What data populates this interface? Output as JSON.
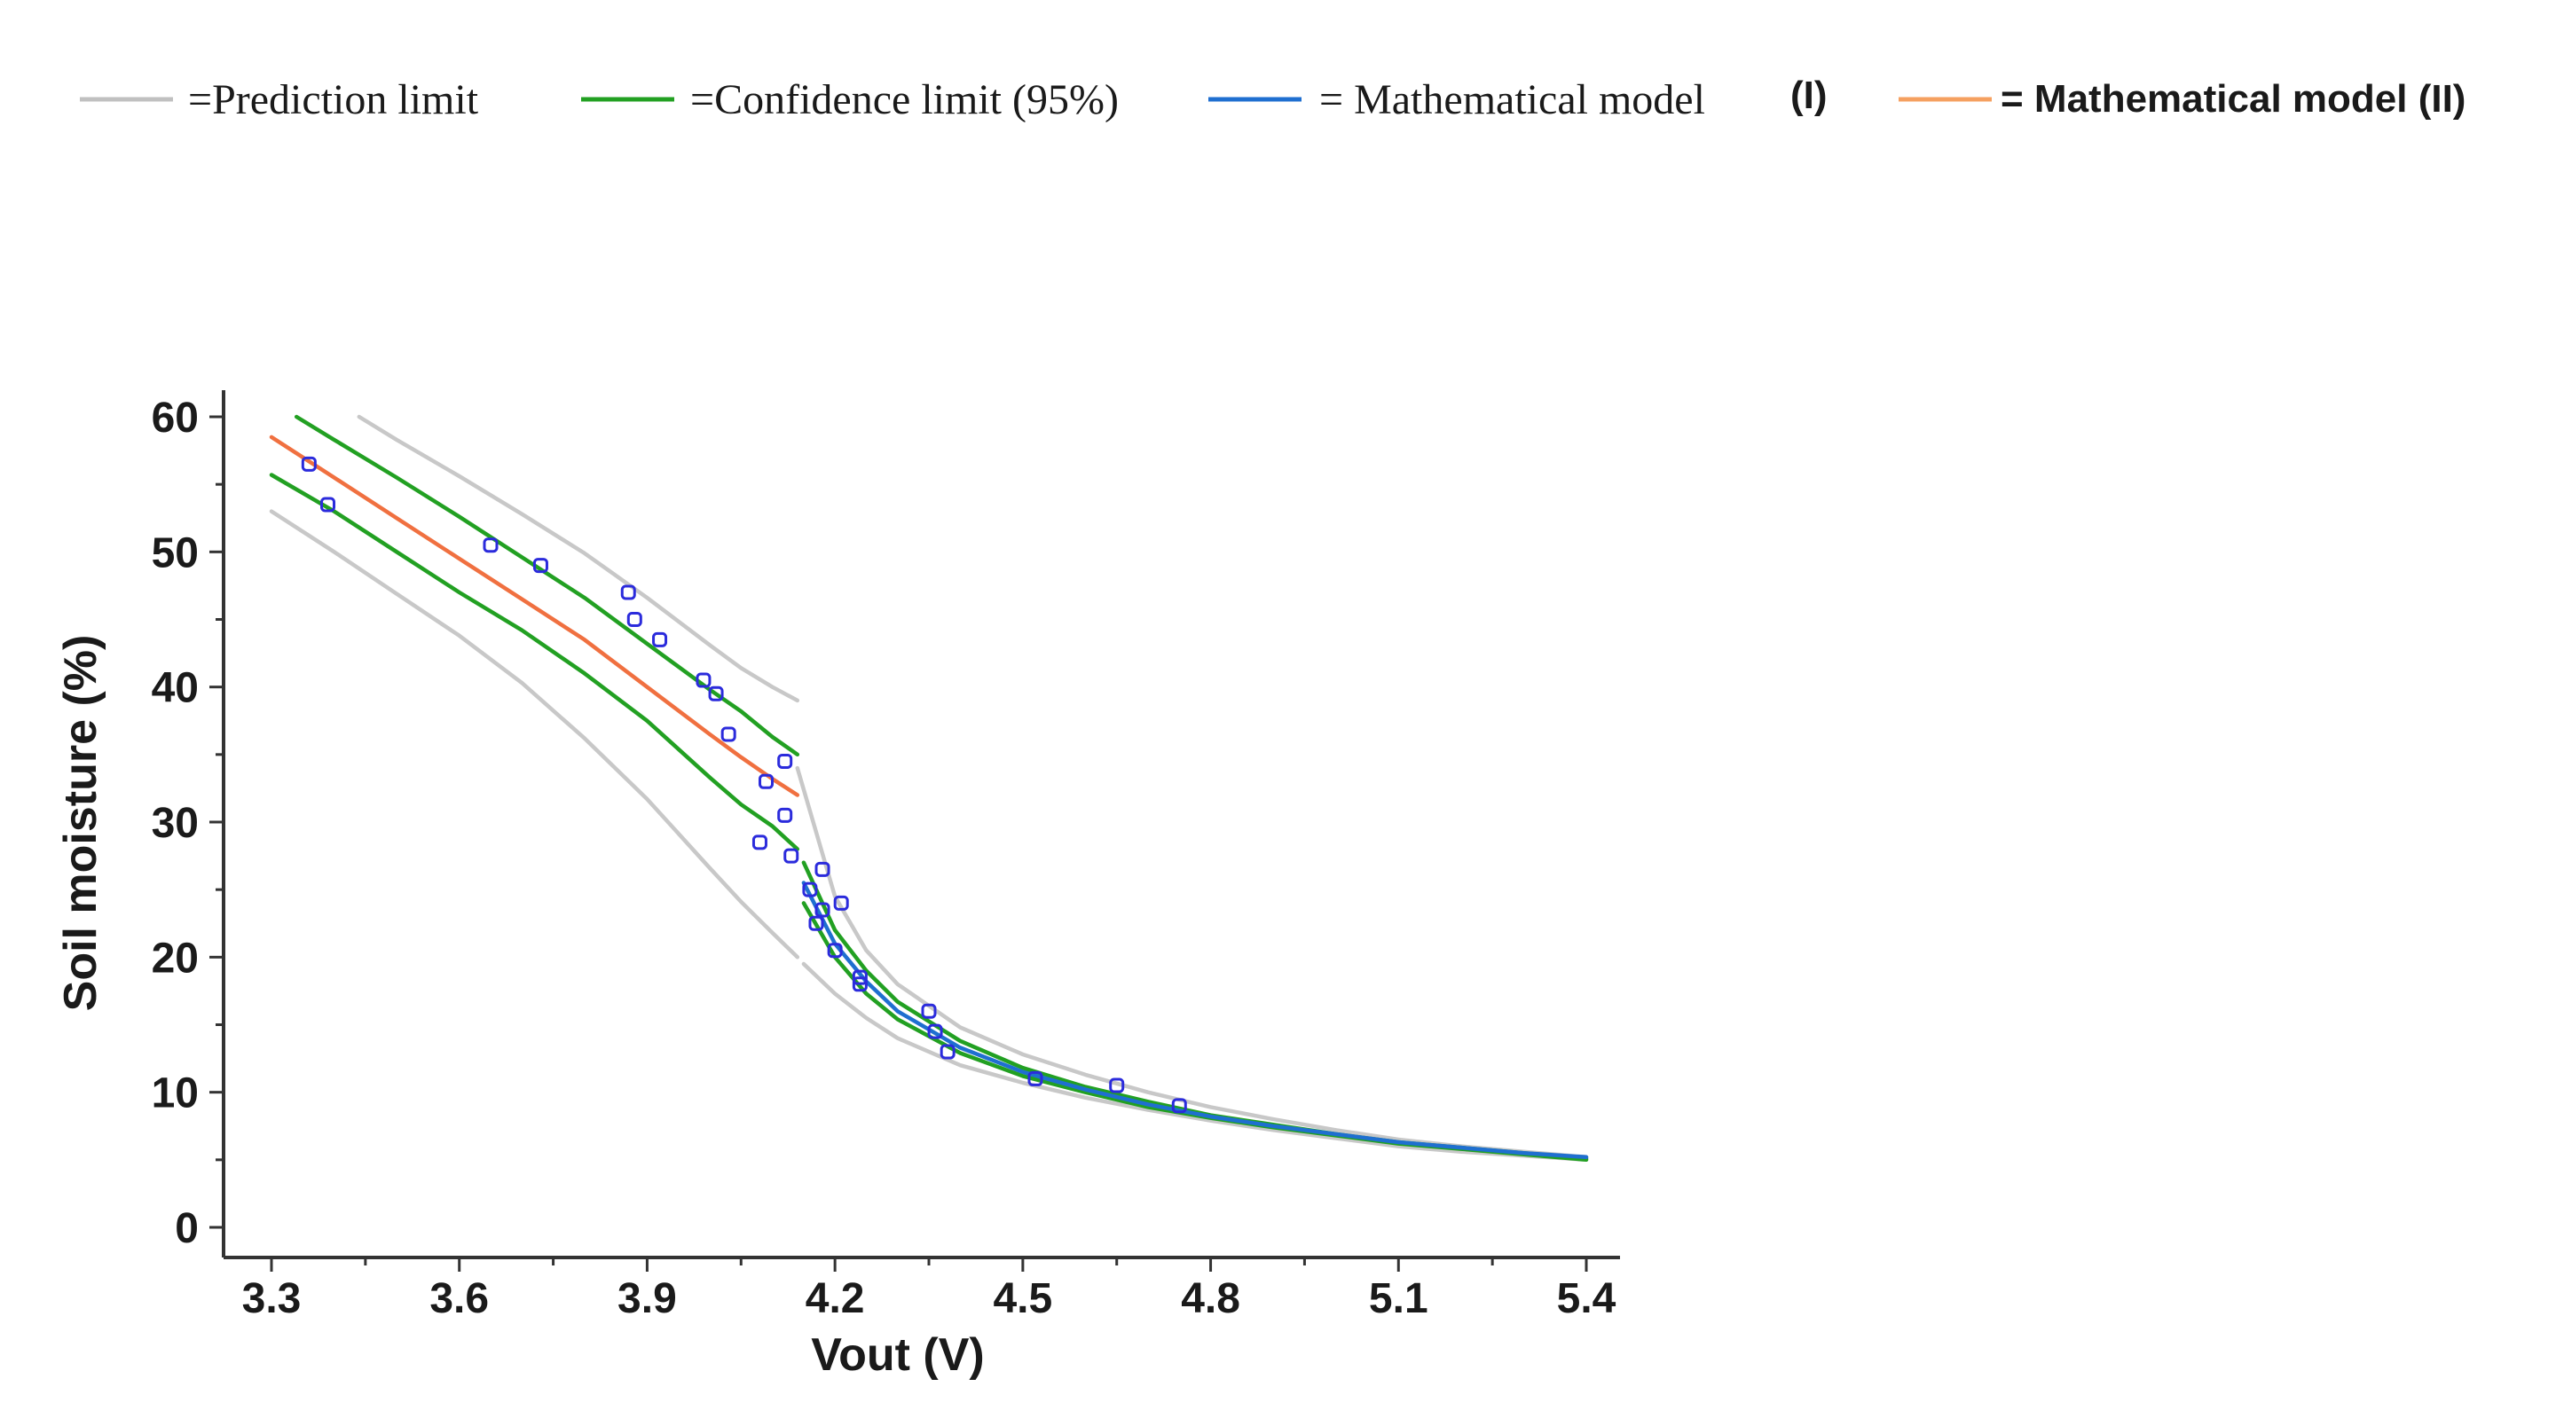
{
  "chart_data": {
    "type": "scatter",
    "title": "",
    "xlabel": "Vout (V)",
    "ylabel": "Soil moisture (%)",
    "xlim": [
      3.25,
      5.45
    ],
    "ylim": [
      -2,
      62
    ],
    "xticks": [
      3.3,
      3.6,
      3.9,
      4.2,
      4.5,
      4.8,
      5.1,
      5.4
    ],
    "xtick_labels": [
      "3.3",
      "3.6",
      "3.9",
      "4.2",
      "4.5",
      "4.8",
      "5.1",
      "5.4"
    ],
    "yticks": [
      0,
      10,
      20,
      30,
      40,
      50,
      60
    ],
    "ytick_labels": [
      "0",
      "10",
      "20",
      "30",
      "40",
      "50",
      "60"
    ],
    "legend": [
      {
        "key": "prediction",
        "label": "=Prediction limit",
        "color": "#c0c0c0"
      },
      {
        "key": "confidence",
        "label": "=Confidence limit (95%)",
        "color": "#22a022"
      },
      {
        "key": "model1",
        "label": "= Mathematical model",
        "suffix": "(I)",
        "color": "#1f6fd0"
      },
      {
        "key": "model2",
        "label": "= Mathematical model (II)",
        "color": "#f5a060"
      }
    ],
    "series": [
      {
        "name": "Observed data",
        "kind": "points",
        "color": "#2b2bdc",
        "x": [
          3.36,
          3.39,
          3.65,
          3.73,
          3.87,
          3.88,
          3.92,
          3.99,
          4.01,
          4.03,
          4.08,
          4.09,
          4.12,
          4.12,
          4.13,
          4.16,
          4.17,
          4.18,
          4.18,
          4.2,
          4.21,
          4.24,
          4.24,
          4.35,
          4.36,
          4.38,
          4.52,
          4.65,
          4.75
        ],
        "y": [
          56.5,
          53.5,
          50.5,
          49.0,
          47.0,
          45.0,
          43.5,
          40.5,
          39.5,
          36.5,
          28.5,
          33.0,
          34.5,
          30.5,
          27.5,
          25.0,
          22.5,
          26.5,
          23.5,
          20.5,
          24.0,
          18.5,
          18.0,
          16.0,
          14.5,
          13.0,
          11.0,
          10.5,
          9.0
        ]
      },
      {
        "name": "Mathematical model (II)",
        "kind": "line",
        "color": "#f07040",
        "x": [
          3.3,
          3.4,
          3.5,
          3.6,
          3.7,
          3.8,
          3.9,
          4.0,
          4.05,
          4.1,
          4.14
        ],
        "y": [
          58.5,
          55.5,
          52.5,
          49.5,
          46.5,
          43.5,
          40.0,
          36.5,
          34.8,
          33.2,
          32.0
        ]
      },
      {
        "name": "Mathematical model (I)",
        "kind": "line",
        "color": "#1f6fd0",
        "x": [
          4.15,
          4.2,
          4.25,
          4.3,
          4.4,
          4.5,
          4.6,
          4.7,
          4.8,
          4.9,
          5.0,
          5.1,
          5.2,
          5.3,
          5.4
        ],
        "y": [
          25.5,
          21.0,
          18.2,
          16.0,
          13.3,
          11.5,
          10.2,
          9.1,
          8.2,
          7.5,
          6.9,
          6.3,
          5.9,
          5.5,
          5.2
        ]
      },
      {
        "name": "Confidence upper (II)",
        "kind": "line",
        "color": "#22a022",
        "x": [
          3.34,
          3.4,
          3.5,
          3.6,
          3.7,
          3.8,
          3.9,
          4.0,
          4.05,
          4.1,
          4.14
        ],
        "y": [
          60.0,
          58.3,
          55.5,
          52.6,
          49.6,
          46.6,
          43.2,
          39.8,
          38.2,
          36.3,
          35.0
        ]
      },
      {
        "name": "Confidence lower (II)",
        "kind": "line",
        "color": "#22a022",
        "x": [
          3.3,
          3.4,
          3.5,
          3.6,
          3.7,
          3.8,
          3.9,
          4.0,
          4.05,
          4.1,
          4.14
        ],
        "y": [
          55.7,
          53.0,
          50.0,
          47.0,
          44.2,
          41.0,
          37.5,
          33.3,
          31.3,
          29.7,
          28.0
        ]
      },
      {
        "name": "Confidence upper (I)",
        "kind": "line",
        "color": "#22a022",
        "x": [
          4.15,
          4.2,
          4.25,
          4.3,
          4.4,
          4.5,
          4.6,
          4.7,
          4.8,
          4.9,
          5.0,
          5.1,
          5.2,
          5.3,
          5.4
        ],
        "y": [
          27.0,
          22.0,
          19.0,
          16.7,
          13.8,
          11.8,
          10.4,
          9.3,
          8.3,
          7.6,
          6.9,
          6.3,
          5.9,
          5.5,
          5.1
        ]
      },
      {
        "name": "Confidence lower (I)",
        "kind": "line",
        "color": "#22a022",
        "x": [
          4.15,
          4.2,
          4.25,
          4.3,
          4.4,
          4.5,
          4.6,
          4.7,
          4.8,
          4.9,
          5.0,
          5.1,
          5.2,
          5.3,
          5.4
        ],
        "y": [
          24.0,
          20.0,
          17.3,
          15.4,
          12.9,
          11.2,
          10.0,
          8.9,
          8.1,
          7.4,
          6.8,
          6.2,
          5.8,
          5.4,
          5.0
        ]
      },
      {
        "name": "Prediction upper (II)",
        "kind": "line",
        "color": "#c8c8c8",
        "x": [
          3.44,
          3.5,
          3.6,
          3.7,
          3.8,
          3.9,
          4.0,
          4.05,
          4.1,
          4.14
        ],
        "y": [
          60.0,
          58.3,
          55.6,
          52.8,
          49.9,
          46.6,
          43.1,
          41.4,
          40.0,
          39.0
        ]
      },
      {
        "name": "Prediction lower (II)",
        "kind": "line",
        "color": "#c8c8c8",
        "x": [
          3.3,
          3.4,
          3.5,
          3.6,
          3.7,
          3.8,
          3.9,
          4.0,
          4.05,
          4.1,
          4.14
        ],
        "y": [
          53.0,
          50.0,
          46.9,
          43.8,
          40.3,
          36.2,
          31.7,
          26.6,
          24.1,
          21.8,
          20.0
        ]
      },
      {
        "name": "Prediction upper (I)",
        "kind": "line",
        "color": "#c8c8c8",
        "x": [
          4.14,
          4.2,
          4.25,
          4.3,
          4.4,
          4.5,
          4.6,
          4.7,
          4.8,
          4.9,
          5.0,
          5.1,
          5.2,
          5.3,
          5.4
        ],
        "y": [
          34.0,
          24.5,
          20.5,
          18.0,
          14.8,
          12.8,
          11.3,
          10.0,
          8.9,
          8.0,
          7.2,
          6.5,
          6.0,
          5.6,
          5.2
        ]
      },
      {
        "name": "Prediction lower (I)",
        "kind": "line",
        "color": "#c8c8c8",
        "x": [
          4.15,
          4.2,
          4.25,
          4.3,
          4.4,
          4.5,
          4.6,
          4.7,
          4.8,
          4.9,
          5.0,
          5.1,
          5.2,
          5.3,
          5.4
        ],
        "y": [
          19.5,
          17.3,
          15.5,
          14.0,
          12.0,
          10.7,
          9.6,
          8.7,
          7.9,
          7.2,
          6.6,
          6.0,
          5.6,
          5.3,
          5.0
        ]
      }
    ]
  }
}
